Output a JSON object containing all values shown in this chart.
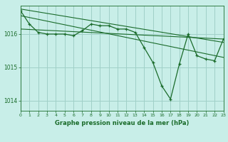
{
  "background_color": "#c8eee8",
  "grid_color": "#a0d0c8",
  "line_color": "#1a6b2a",
  "xlabel": "Graphe pression niveau de la mer (hPa)",
  "xlim": [
    0,
    23
  ],
  "ylim": [
    1013.7,
    1016.85
  ],
  "yticks": [
    1014,
    1015,
    1016
  ],
  "xticks": [
    0,
    1,
    2,
    3,
    4,
    5,
    6,
    7,
    8,
    9,
    10,
    11,
    12,
    13,
    14,
    15,
    16,
    17,
    18,
    19,
    20,
    21,
    22,
    23
  ],
  "series": {
    "main": {
      "x": [
        0,
        1,
        2,
        3,
        4,
        5,
        6,
        7,
        8,
        9,
        10,
        11,
        12,
        13,
        14,
        15,
        16,
        17,
        18,
        19,
        20,
        21,
        22,
        23
      ],
      "y": [
        1016.7,
        1016.3,
        1016.05,
        1016.0,
        1016.0,
        1016.0,
        1015.95,
        1016.1,
        1016.3,
        1016.25,
        1016.25,
        1016.15,
        1016.15,
        1016.05,
        1015.6,
        1015.15,
        1014.45,
        1014.05,
        1015.1,
        1016.0,
        1015.35,
        1015.25,
        1015.2,
        1015.85
      ]
    },
    "trend1": {
      "x": [
        0,
        23
      ],
      "y": [
        1016.75,
        1015.75
      ]
    },
    "trend2": {
      "x": [
        0,
        23
      ],
      "y": [
        1016.55,
        1015.3
      ]
    },
    "trend3": {
      "x": [
        0,
        23
      ],
      "y": [
        1016.15,
        1015.85
      ]
    }
  }
}
